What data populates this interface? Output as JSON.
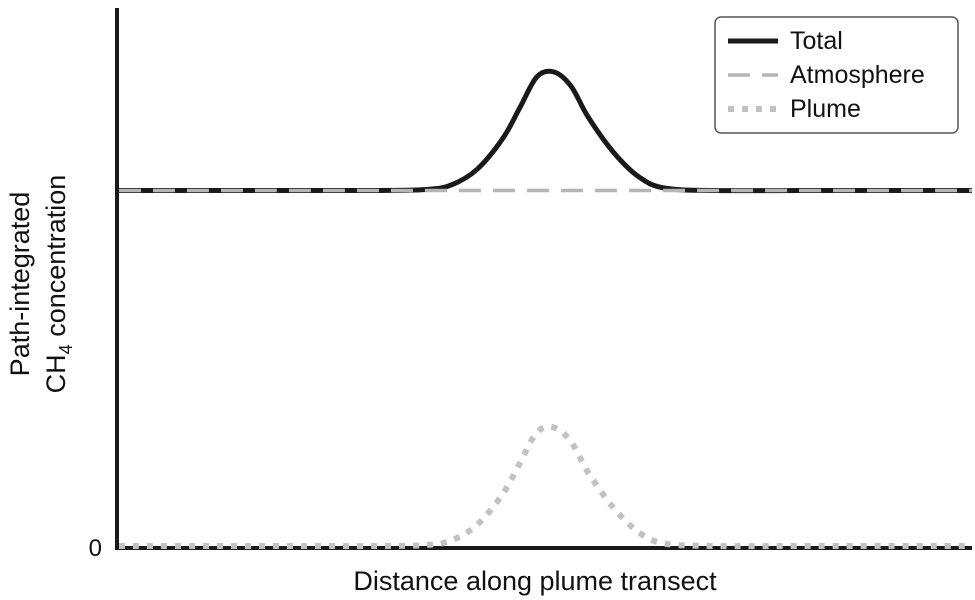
{
  "chart_data": {
    "type": "line",
    "title": "",
    "xlabel": "Distance along plume transect",
    "ylabel": {
      "line1": "Path-integrated",
      "line2_prefix": "CH",
      "line2_subscript": "4",
      "line2_suffix": " concentration"
    },
    "y_ticks": [
      "0"
    ],
    "xlim": [
      0,
      1
    ],
    "ylim": [
      0,
      1.2
    ],
    "grid": false,
    "legend_position": "top-right",
    "series": [
      {
        "name": "Total",
        "style": "solid",
        "color": "#1a1a1a",
        "x": [
          0,
          0.1,
          0.2,
          0.3,
          0.36,
          0.39,
          0.42,
          0.45,
          0.47,
          0.49,
          0.51,
          0.53,
          0.55,
          0.58,
          0.61,
          0.64,
          0.7,
          0.8,
          0.9,
          1.0
        ],
        "y": [
          0.75,
          0.75,
          0.75,
          0.75,
          0.752,
          0.762,
          0.795,
          0.86,
          0.925,
          0.99,
          1.0,
          0.97,
          0.905,
          0.83,
          0.778,
          0.755,
          0.75,
          0.75,
          0.75,
          0.75
        ]
      },
      {
        "name": "Atmosphere",
        "style": "dashed",
        "color": "#b5b5b5",
        "x": [
          0,
          1
        ],
        "y": [
          0.75,
          0.75
        ]
      },
      {
        "name": "Plume",
        "style": "dotted",
        "color": "#c2c2c2",
        "x": [
          0,
          0.1,
          0.2,
          0.3,
          0.36,
          0.39,
          0.42,
          0.45,
          0.47,
          0.49,
          0.51,
          0.53,
          0.55,
          0.58,
          0.61,
          0.64,
          0.7,
          0.8,
          0.9,
          1.0
        ],
        "y": [
          0,
          0,
          0,
          0,
          0.002,
          0.012,
          0.045,
          0.11,
          0.175,
          0.24,
          0.25,
          0.22,
          0.155,
          0.08,
          0.028,
          0.005,
          0,
          0,
          0,
          0
        ]
      }
    ]
  }
}
